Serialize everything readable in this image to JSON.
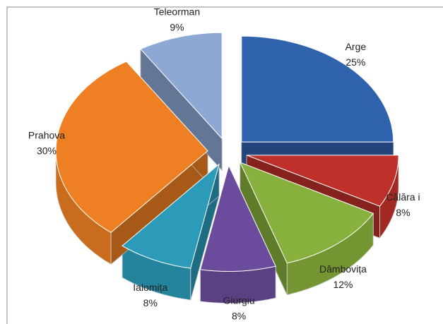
{
  "chart_data": {
    "type": "pie3d",
    "categories": [
      "Arge",
      "Călăra i",
      "Dâmbovița",
      "Giurgiu",
      "Ialomița",
      "Prahova",
      "Teleorman"
    ],
    "values": [
      25,
      8,
      12,
      8,
      8,
      30,
      9
    ],
    "value_labels": [
      "25%",
      "8%",
      "12%",
      "8%",
      "8%",
      "30%",
      "9%"
    ],
    "colors": [
      "#2f63ae",
      "#c0302b",
      "#87b13c",
      "#6b4b9b",
      "#2b9bb9",
      "#ee7f22",
      "#8ea8d6"
    ]
  }
}
